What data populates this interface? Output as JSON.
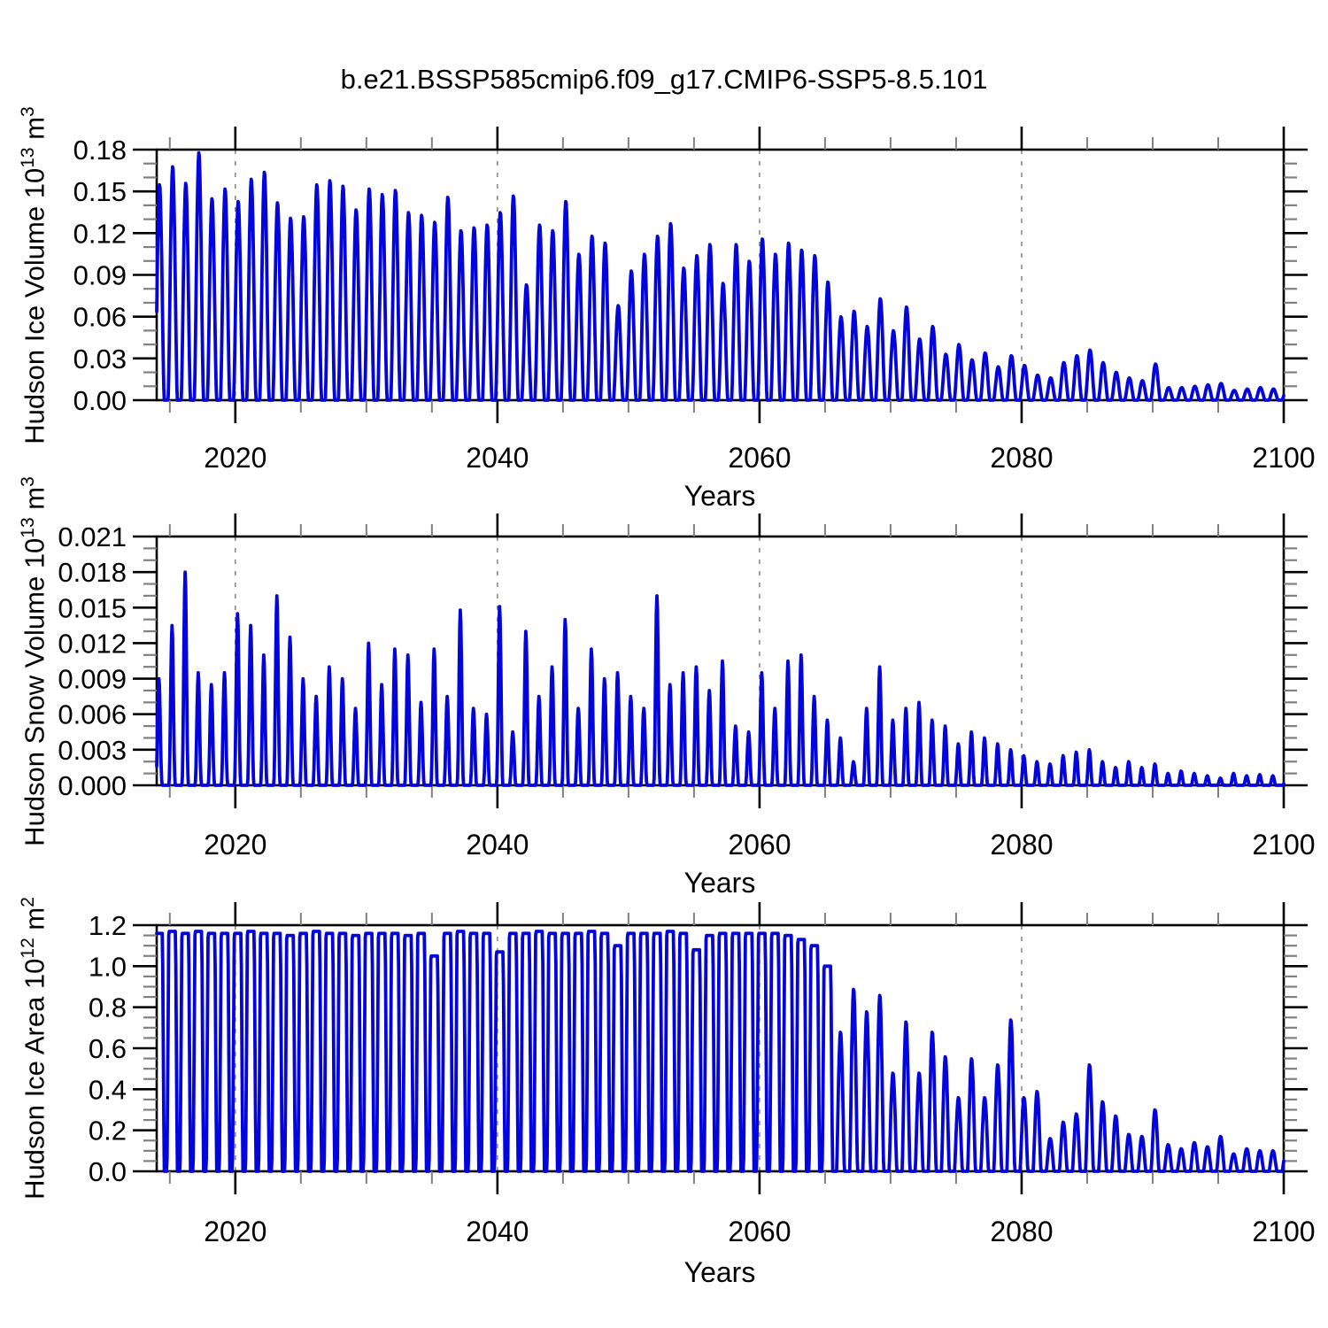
{
  "title": "b.e21.BSSP585cmip6.f09_g17.CMIP6-SSP5-8.5.101",
  "chart_data": {
    "type": "line",
    "series_description": "Monthly seasonal cycle, one pulse per year from ~0 each summer up to the annual winter maximum; annual maxima listed per year.",
    "colors": {
      "line": "#0404dd",
      "frame": "#000000",
      "major_tick": "#000000",
      "minor_tick": "#808080",
      "grid": "#8a8a8a",
      "background": "#ffffff",
      "text": "#000000"
    },
    "x": {
      "label": "Years",
      "range": [
        2014,
        2100
      ],
      "major_ticks": [
        2020,
        2040,
        2060,
        2080,
        2100
      ],
      "minor_step": 5,
      "grid_years": [
        2020,
        2040,
        2060,
        2080
      ]
    },
    "panels": [
      {
        "id": "ice_volume",
        "ylabel": {
          "prefix": "Hudson Ice Volume 10",
          "sup1": "13",
          "mid": " m",
          "sup2": "3"
        },
        "ylim": [
          0,
          0.18
        ],
        "ytick_major": 0.03,
        "ytick_minor": 0.01,
        "ytick_labels": [
          "0.00",
          "0.03",
          "0.06",
          "0.09",
          "0.12",
          "0.15",
          "0.18"
        ],
        "start_year": 2014,
        "annual_max": [
          0.155,
          0.168,
          0.156,
          0.178,
          0.145,
          0.152,
          0.143,
          0.159,
          0.164,
          0.142,
          0.131,
          0.132,
          0.155,
          0.158,
          0.154,
          0.137,
          0.152,
          0.148,
          0.151,
          0.135,
          0.133,
          0.128,
          0.146,
          0.122,
          0.124,
          0.126,
          0.135,
          0.147,
          0.083,
          0.126,
          0.122,
          0.143,
          0.105,
          0.118,
          0.113,
          0.068,
          0.093,
          0.105,
          0.118,
          0.127,
          0.095,
          0.104,
          0.112,
          0.084,
          0.112,
          0.1,
          0.116,
          0.105,
          0.113,
          0.108,
          0.104,
          0.085,
          0.06,
          0.064,
          0.053,
          0.073,
          0.05,
          0.067,
          0.044,
          0.053,
          0.033,
          0.04,
          0.029,
          0.034,
          0.024,
          0.032,
          0.025,
          0.018,
          0.016,
          0.027,
          0.032,
          0.036,
          0.027,
          0.02,
          0.016,
          0.014,
          0.026,
          0.009,
          0.009,
          0.01,
          0.011,
          0.012,
          0.007,
          0.008,
          0.009,
          0.008
        ]
      },
      {
        "id": "snow_volume",
        "ylabel": {
          "prefix": "Hudson Snow Volume 10",
          "sup1": "13",
          "mid": " m",
          "sup2": "3"
        },
        "ylim": [
          0,
          0.021
        ],
        "ytick_major": 0.003,
        "ytick_minor": 0.001,
        "ytick_labels": [
          "0.000",
          "0.003",
          "0.006",
          "0.009",
          "0.012",
          "0.015",
          "0.018",
          "0.021"
        ],
        "start_year": 2014,
        "annual_max": [
          0.009,
          0.0135,
          0.018,
          0.0095,
          0.0085,
          0.0095,
          0.0145,
          0.0135,
          0.011,
          0.016,
          0.0125,
          0.009,
          0.0075,
          0.01,
          0.009,
          0.0065,
          0.012,
          0.0085,
          0.0115,
          0.011,
          0.007,
          0.0115,
          0.0075,
          0.0148,
          0.0065,
          0.006,
          0.0151,
          0.0045,
          0.013,
          0.0075,
          0.01,
          0.014,
          0.0065,
          0.0115,
          0.009,
          0.0095,
          0.0075,
          0.0065,
          0.016,
          0.0085,
          0.0095,
          0.01,
          0.008,
          0.0105,
          0.005,
          0.0045,
          0.0095,
          0.0065,
          0.0105,
          0.011,
          0.0075,
          0.0055,
          0.004,
          0.002,
          0.0065,
          0.01,
          0.0055,
          0.0065,
          0.007,
          0.0055,
          0.005,
          0.0035,
          0.0045,
          0.004,
          0.0035,
          0.003,
          0.0025,
          0.002,
          0.0018,
          0.0025,
          0.0028,
          0.003,
          0.002,
          0.0015,
          0.002,
          0.0015,
          0.0018,
          0.001,
          0.0012,
          0.001,
          0.0008,
          0.0006,
          0.001,
          0.0008,
          0.0009,
          0.0008
        ]
      },
      {
        "id": "ice_area",
        "ylabel": {
          "prefix": "Hudson Ice Area 10",
          "sup1": "12",
          "mid": " m",
          "sup2": "2"
        },
        "ylim": [
          0,
          1.2
        ],
        "ytick_major": 0.2,
        "ytick_minor": 0.05,
        "ytick_labels": [
          "0.0",
          "0.2",
          "0.4",
          "0.6",
          "0.8",
          "1.0",
          "1.2"
        ],
        "start_year": 2014,
        "annual_max": [
          1.16,
          1.17,
          1.16,
          1.17,
          1.16,
          1.16,
          1.16,
          1.17,
          1.16,
          1.16,
          1.15,
          1.16,
          1.17,
          1.16,
          1.16,
          1.15,
          1.16,
          1.16,
          1.16,
          1.15,
          1.16,
          1.05,
          1.16,
          1.17,
          1.16,
          1.16,
          1.07,
          1.16,
          1.16,
          1.17,
          1.16,
          1.16,
          1.16,
          1.17,
          1.16,
          1.1,
          1.16,
          1.16,
          1.16,
          1.17,
          1.16,
          1.08,
          1.15,
          1.16,
          1.16,
          1.16,
          1.16,
          1.16,
          1.15,
          1.13,
          1.1,
          1.0,
          0.68,
          0.89,
          0.78,
          0.86,
          0.48,
          0.73,
          0.48,
          0.68,
          0.56,
          0.36,
          0.55,
          0.36,
          0.52,
          0.74,
          0.36,
          0.39,
          0.16,
          0.24,
          0.28,
          0.52,
          0.34,
          0.27,
          0.18,
          0.17,
          0.3,
          0.13,
          0.11,
          0.14,
          0.12,
          0.17,
          0.085,
          0.11,
          0.1,
          0.1
        ]
      }
    ],
    "seasonal_shape": {
      "ice_volume": {
        "center": 0.22,
        "halfwidth": 0.36,
        "power": 1.6
      },
      "snow_volume": {
        "center": 0.17,
        "halfwidth": 0.26,
        "power": 2.6
      },
      "ice_area": {
        "center": 0.18,
        "halfwidth": 0.4,
        "power": 1.2,
        "gain": 2.2,
        "plateau_threshold": 0.9,
        "halfwidth_low": 0.3,
        "power_low": 1.3
      }
    }
  }
}
